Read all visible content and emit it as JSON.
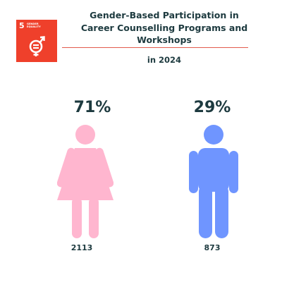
{
  "sdg_badge": {
    "number": "5",
    "label": "GENDER\nEQUALITY",
    "icon": "gender-equality-icon",
    "color": "#ef402b"
  },
  "chart_data": {
    "type": "pictograph",
    "title": "Gender-Based Participation in Career Counselling Programs and Workshops",
    "subtitle": "in 2024",
    "categories": [
      "Women",
      "Men"
    ],
    "values": [
      2113,
      873
    ],
    "percent_labels": [
      "71%",
      "29%"
    ],
    "count_labels": [
      "2113",
      "873"
    ],
    "percentages": [
      71,
      29
    ],
    "colors": {
      "women": "#ffb6cf",
      "men": "#6f95ff"
    }
  }
}
